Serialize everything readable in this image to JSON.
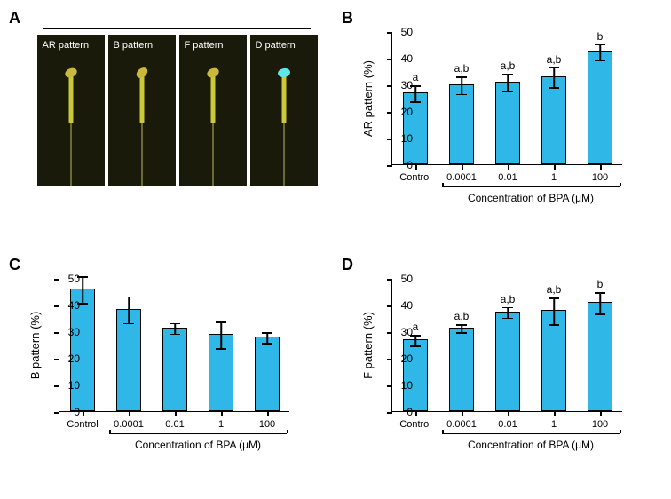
{
  "panelA": {
    "label": "A",
    "images": [
      {
        "label": "AR pattern",
        "head_color": "#c9b83a"
      },
      {
        "label": "B pattern",
        "head_color": "#c9b83a"
      },
      {
        "label": "F pattern",
        "head_color": "#c9b83a"
      },
      {
        "label": "D pattern",
        "head_color": "#5fe8e8"
      }
    ]
  },
  "panelB": {
    "label": "B",
    "ylabel": "AR pattern (%)",
    "xlabel": "Concentration of BPA (μM)",
    "ylim": [
      0,
      50
    ],
    "ytick_step": 10,
    "categories": [
      "Control",
      "0.0001",
      "0.01",
      "1",
      "100"
    ],
    "values": [
      27,
      30,
      31,
      33,
      42.5
    ],
    "err": [
      3,
      3.2,
      3.2,
      3.8,
      3
    ],
    "sig": [
      "a",
      "a,b",
      "a,b",
      "a,b",
      "b"
    ],
    "bar_color": "#2fb7e8",
    "bar_border": "#000000",
    "text_color": "#000000",
    "label_fontsize": 13
  },
  "panelC": {
    "label": "C",
    "ylabel": "B pattern (%)",
    "xlabel": "Concentration of BPA (μM)",
    "ylim": [
      0,
      50
    ],
    "ytick_step": 10,
    "categories": [
      "Control",
      "0.0001",
      "0.01",
      "1",
      "100"
    ],
    "values": [
      46,
      38.5,
      31.5,
      29,
      28
    ],
    "err": [
      5,
      5,
      2,
      5,
      2
    ],
    "sig": [
      "",
      "",
      "",
      "",
      ""
    ],
    "bar_color": "#2fb7e8",
    "bar_border": "#000000",
    "text_color": "#000000",
    "label_fontsize": 13
  },
  "panelD": {
    "label": "D",
    "ylabel": "F pattern (%)",
    "xlabel": "Concentration of BPA (μM)",
    "ylim": [
      0,
      50
    ],
    "ytick_step": 10,
    "categories": [
      "Control",
      "0.0001",
      "0.01",
      "1",
      "100"
    ],
    "values": [
      27,
      31.5,
      37.5,
      38,
      41
    ],
    "err": [
      2,
      1.5,
      2,
      5,
      4
    ],
    "sig": [
      "a",
      "a,b",
      "a,b",
      "a,b",
      "b"
    ],
    "bar_color": "#2fb7e8",
    "bar_border": "#000000",
    "text_color": "#000000",
    "label_fontsize": 13
  }
}
